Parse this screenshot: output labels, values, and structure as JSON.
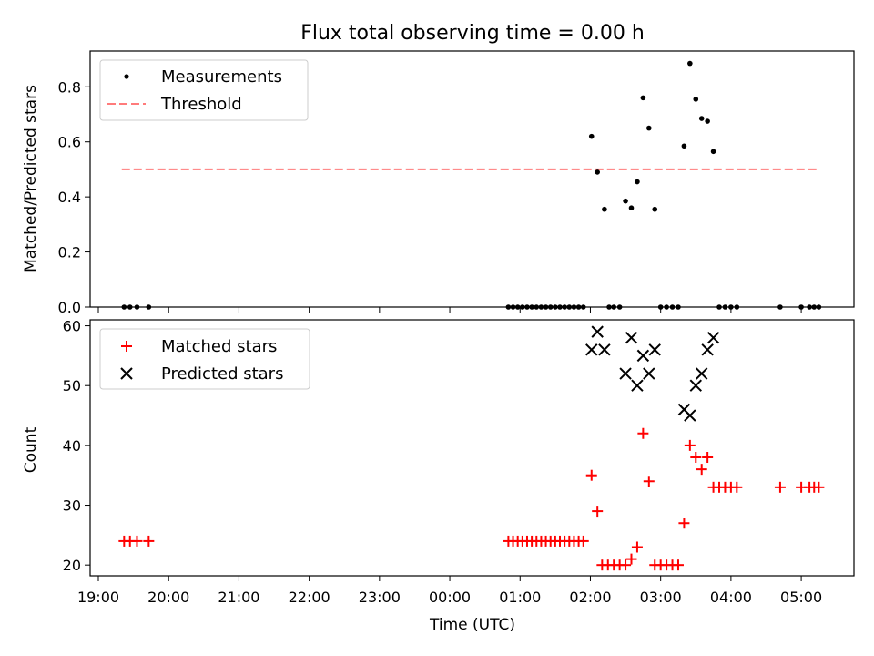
{
  "chart_data": [
    {
      "type": "scatter",
      "title": "Flux total observing time = 0.00 h",
      "ylabel": "Matched/Predicted stars",
      "xlim": [
        "18:53",
        "05:45"
      ],
      "ylim": [
        0,
        0.93
      ],
      "yticks": [
        "0.0",
        "0.2",
        "0.4",
        "0.6",
        "0.8"
      ],
      "legend": {
        "position": "top-left",
        "entries": [
          "Measurements",
          "Threshold"
        ]
      },
      "threshold": {
        "name": "Threshold",
        "y": 0.5,
        "x_start": "19:20",
        "x_end": "05:13",
        "color": "#ff7b7b",
        "style": "dashed"
      },
      "series": [
        {
          "name": "Measurements",
          "marker": "dot",
          "color": "#000000",
          "points": [
            [
              "19:22",
              0
            ],
            [
              "19:27",
              0
            ],
            [
              "19:33",
              0
            ],
            [
              "19:43",
              0
            ],
            [
              "00:50",
              0
            ],
            [
              "00:54",
              0
            ],
            [
              "00:58",
              0
            ],
            [
              "01:02",
              0
            ],
            [
              "01:06",
              0
            ],
            [
              "01:10",
              0
            ],
            [
              "01:14",
              0
            ],
            [
              "01:18",
              0
            ],
            [
              "01:22",
              0
            ],
            [
              "01:26",
              0
            ],
            [
              "01:30",
              0
            ],
            [
              "01:34",
              0
            ],
            [
              "01:38",
              0
            ],
            [
              "01:42",
              0
            ],
            [
              "01:46",
              0
            ],
            [
              "01:50",
              0
            ],
            [
              "01:54",
              0
            ],
            [
              "02:01",
              0.62
            ],
            [
              "02:06",
              0.49
            ],
            [
              "02:12",
              0.355
            ],
            [
              "02:16",
              0
            ],
            [
              "02:20",
              0
            ],
            [
              "02:25",
              0
            ],
            [
              "02:30",
              0.385
            ],
            [
              "02:35",
              0.36
            ],
            [
              "02:40",
              0.455
            ],
            [
              "02:45",
              0.76
            ],
            [
              "02:50",
              0.65
            ],
            [
              "02:55",
              0.355
            ],
            [
              "03:00",
              0
            ],
            [
              "03:05",
              0
            ],
            [
              "03:10",
              0
            ],
            [
              "03:15",
              0
            ],
            [
              "03:20",
              0.585
            ],
            [
              "03:25",
              0.885
            ],
            [
              "03:30",
              0.755
            ],
            [
              "03:35",
              0.685
            ],
            [
              "03:40",
              0.675
            ],
            [
              "03:45",
              0.565
            ],
            [
              "03:50",
              0
            ],
            [
              "03:55",
              0
            ],
            [
              "04:00",
              0
            ],
            [
              "04:05",
              0
            ],
            [
              "04:42",
              0
            ],
            [
              "05:00",
              0
            ],
            [
              "05:07",
              0
            ],
            [
              "05:11",
              0
            ],
            [
              "05:15",
              0
            ]
          ]
        }
      ]
    },
    {
      "type": "scatter",
      "xlabel": "Time (UTC)",
      "ylabel": "Count",
      "xlim": [
        "18:53",
        "05:45"
      ],
      "ylim": [
        18.2,
        61
      ],
      "yticks": [
        "20",
        "30",
        "40",
        "50",
        "60"
      ],
      "xticks": [
        "19:00",
        "20:00",
        "21:00",
        "22:00",
        "23:00",
        "00:00",
        "01:00",
        "02:00",
        "03:00",
        "04:00",
        "05:00"
      ],
      "legend": {
        "position": "top-left",
        "entries": [
          "Matched stars",
          "Predicted stars"
        ]
      },
      "series": [
        {
          "name": "Matched stars",
          "marker": "plus",
          "color": "#ff0000",
          "points": [
            [
              "19:22",
              24
            ],
            [
              "19:27",
              24
            ],
            [
              "19:33",
              24
            ],
            [
              "19:43",
              24
            ],
            [
              "00:50",
              24
            ],
            [
              "00:54",
              24
            ],
            [
              "00:58",
              24
            ],
            [
              "01:02",
              24
            ],
            [
              "01:06",
              24
            ],
            [
              "01:10",
              24
            ],
            [
              "01:14",
              24
            ],
            [
              "01:18",
              24
            ],
            [
              "01:22",
              24
            ],
            [
              "01:26",
              24
            ],
            [
              "01:30",
              24
            ],
            [
              "01:34",
              24
            ],
            [
              "01:38",
              24
            ],
            [
              "01:42",
              24
            ],
            [
              "01:46",
              24
            ],
            [
              "01:50",
              24
            ],
            [
              "01:54",
              24
            ],
            [
              "02:01",
              35
            ],
            [
              "02:06",
              29
            ],
            [
              "02:10",
              20
            ],
            [
              "02:15",
              20
            ],
            [
              "02:20",
              20
            ],
            [
              "02:25",
              20
            ],
            [
              "02:30",
              20
            ],
            [
              "02:35",
              21
            ],
            [
              "02:40",
              23
            ],
            [
              "02:45",
              42
            ],
            [
              "02:50",
              34
            ],
            [
              "02:55",
              20
            ],
            [
              "03:00",
              20
            ],
            [
              "03:05",
              20
            ],
            [
              "03:10",
              20
            ],
            [
              "03:15",
              20
            ],
            [
              "03:20",
              27
            ],
            [
              "03:25",
              40
            ],
            [
              "03:30",
              38
            ],
            [
              "03:35",
              36
            ],
            [
              "03:40",
              38
            ],
            [
              "03:45",
              33
            ],
            [
              "03:50",
              33
            ],
            [
              "03:55",
              33
            ],
            [
              "04:00",
              33
            ],
            [
              "04:05",
              33
            ],
            [
              "04:42",
              33
            ],
            [
              "05:00",
              33
            ],
            [
              "05:07",
              33
            ],
            [
              "05:11",
              33
            ],
            [
              "05:15",
              33
            ]
          ]
        },
        {
          "name": "Predicted stars",
          "marker": "x",
          "color": "#000000",
          "points": [
            [
              "02:01",
              56
            ],
            [
              "02:06",
              59
            ],
            [
              "02:12",
              56
            ],
            [
              "02:30",
              52
            ],
            [
              "02:35",
              58
            ],
            [
              "02:40",
              50
            ],
            [
              "02:45",
              55
            ],
            [
              "02:50",
              52
            ],
            [
              "02:55",
              56
            ],
            [
              "03:20",
              46
            ],
            [
              "03:25",
              45
            ],
            [
              "03:30",
              50
            ],
            [
              "03:35",
              52
            ],
            [
              "03:40",
              56
            ],
            [
              "03:45",
              58
            ]
          ]
        }
      ]
    }
  ]
}
